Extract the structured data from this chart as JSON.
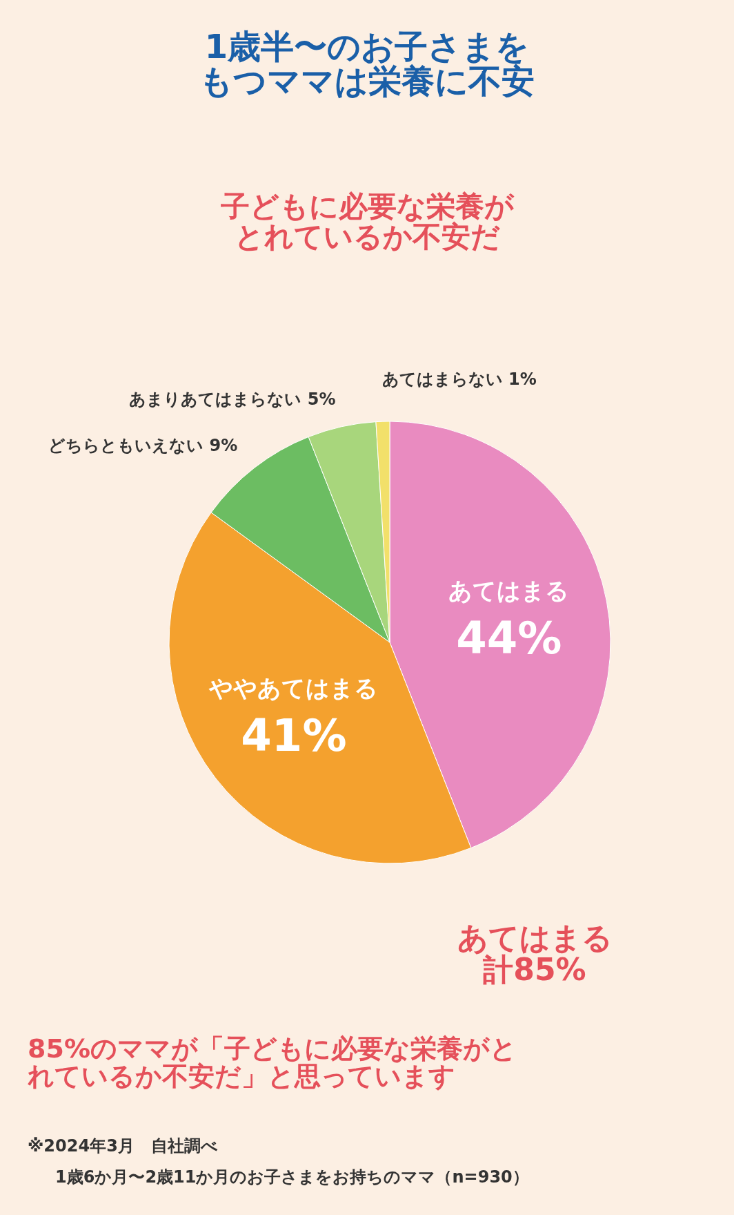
{
  "chart_data": {
    "type": "pie",
    "title": "1歳半〜のお子さまをもつママは栄養に不安",
    "subtitle": "子どもに必要な栄養がとれているか不安だ",
    "categories": [
      "あてはまる",
      "ややあてはまる",
      "どちらともいえない",
      "あまりあてはまらない",
      "あてはまらない"
    ],
    "values": [
      44,
      41,
      9,
      5,
      1
    ],
    "colors": [
      "#e98bc0",
      "#f4a12e",
      "#6cbd62",
      "#a8d67c",
      "#f2e06a"
    ],
    "value_labels": [
      "44%",
      "41%",
      "9%",
      "5%",
      "1%"
    ],
    "legend": false,
    "annotations": [
      "あてはまる計85%",
      "85%のママが「子どもに必要な栄養がとれているか不安だ」と思っています",
      "※2024年3月　自社調べ",
      "1歳6か月〜2歳11か月のお子さまをお持ちのママ（n=930）"
    ]
  }
}
